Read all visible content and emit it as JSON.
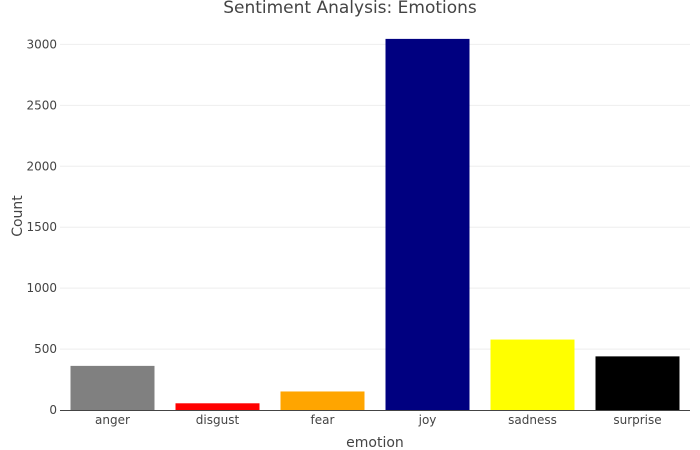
{
  "chart_data": {
    "type": "bar",
    "title": "Sentiment Analysis: Emotions",
    "xlabel": "emotion",
    "ylabel": "Count",
    "categories": [
      "anger",
      "disgust",
      "fear",
      "joy",
      "sadness",
      "surprise"
    ],
    "values": [
      362,
      55,
      152,
      3045,
      578,
      440
    ],
    "colors": [
      "#808080",
      "#ff0000",
      "#ffa500",
      "#000080",
      "#ffff00",
      "#000000"
    ],
    "ylim": [
      0,
      3200
    ],
    "yticks": [
      0,
      500,
      1000,
      1500,
      2000,
      2500,
      3000
    ],
    "grid": true,
    "legend": "none"
  }
}
